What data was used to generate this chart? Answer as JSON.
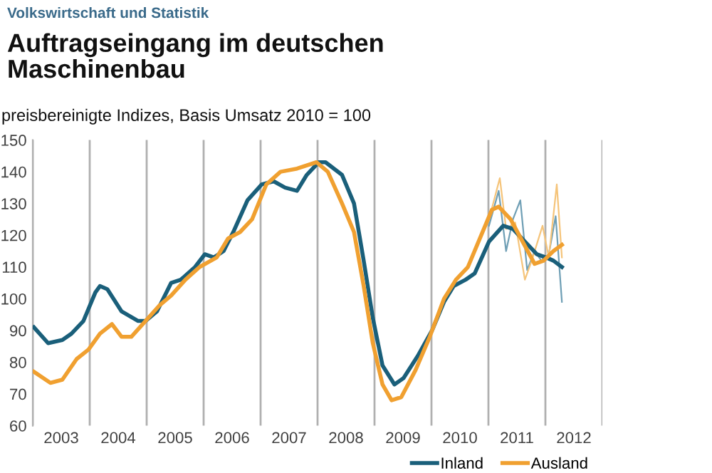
{
  "chart_data": {
    "type": "line",
    "title": "Auftragseingang im deutschen\nMaschinenbau",
    "subtitle": "preisbereinigte Indizes, Basis Umsatz 2010 = 100",
    "annotations": [
      "Volkswirtschaft und Statistik"
    ],
    "xlim": [
      2003,
      2013
    ],
    "ylim": [
      60,
      150
    ],
    "xticks": [
      {
        "value": 2003,
        "label": null
      },
      {
        "value": 2003.5,
        "label": "2003"
      },
      {
        "value": 2004,
        "label": null
      },
      {
        "value": 2004.5,
        "label": "2004"
      },
      {
        "value": 2005,
        "label": null
      },
      {
        "value": 2005.5,
        "label": "2005"
      },
      {
        "value": 2006,
        "label": null
      },
      {
        "value": 2006.5,
        "label": "2006"
      },
      {
        "value": 2007,
        "label": null
      },
      {
        "value": 2007.5,
        "label": "2007"
      },
      {
        "value": 2008,
        "label": null
      },
      {
        "value": 2008.5,
        "label": "2008"
      },
      {
        "value": 2009,
        "label": null
      },
      {
        "value": 2009.5,
        "label": "2009"
      },
      {
        "value": 2010,
        "label": null
      },
      {
        "value": 2010.5,
        "label": "2010"
      },
      {
        "value": 2011,
        "label": null
      },
      {
        "value": 2011.5,
        "label": "2011"
      },
      {
        "value": 2012,
        "label": null
      },
      {
        "value": 2012.5,
        "label": "2012"
      },
      {
        "value": 2013,
        "label": null
      }
    ],
    "yticks": [
      60,
      70,
      80,
      90,
      100,
      110,
      120,
      130,
      140,
      150
    ],
    "grid": "x",
    "legend": "bottom right",
    "marker": "none",
    "line_style": "solid",
    "series": [
      {
        "color": "#6f9fb5",
        "x": [
          2011.01,
          2011.18,
          2011.31,
          2011.43,
          2011.56,
          2011.68,
          2011.81,
          2011.93,
          2012.06,
          2012.18,
          2012.29
        ],
        "values": [
          123,
          134,
          115,
          125,
          131,
          109,
          115,
          112,
          114,
          126,
          99
        ]
      },
      {
        "color": "#f5c47a",
        "x": [
          2011.01,
          2011.2,
          2011.31,
          2011.47,
          2011.64,
          2011.76,
          2011.95,
          2012.06,
          2012.2,
          2012.29
        ],
        "values": [
          125,
          138,
          122,
          124,
          106,
          112,
          123,
          113,
          136,
          113
        ]
      },
      {
        "name": "Inland",
        "color": "#1a5f7a",
        "x": [
          2003.02,
          2003.27,
          2003.52,
          2003.68,
          2003.89,
          2004.1,
          2004.18,
          2004.31,
          2004.56,
          2004.85,
          2004.98,
          2005.18,
          2005.43,
          2005.6,
          2005.85,
          2006.02,
          2006.18,
          2006.35,
          2006.52,
          2006.77,
          2007.02,
          2007.23,
          2007.43,
          2007.64,
          2007.81,
          2008.02,
          2008.14,
          2008.43,
          2008.64,
          2008.81,
          2008.97,
          2009.14,
          2009.35,
          2009.51,
          2009.76,
          2010.01,
          2010.22,
          2010.39,
          2010.6,
          2010.76,
          2011.01,
          2011.26,
          2011.43,
          2011.64,
          2011.85,
          2012.01,
          2012.14,
          2012.29
        ],
        "values": [
          91,
          86,
          87,
          89,
          93,
          102,
          104,
          103,
          96,
          93,
          93,
          96,
          105,
          106,
          110,
          114,
          113,
          115,
          121,
          131,
          136,
          137,
          135,
          134,
          139,
          143,
          143,
          139,
          130,
          112,
          94,
          79,
          73,
          75,
          82,
          90,
          99,
          104,
          106,
          108,
          118,
          123,
          122,
          118,
          114,
          113,
          112,
          110
        ]
      },
      {
        "name": "Ausland",
        "color": "#f0a030",
        "x": [
          2003.02,
          2003.31,
          2003.52,
          2003.77,
          2003.98,
          2004.18,
          2004.39,
          2004.56,
          2004.73,
          2004.98,
          2005.23,
          2005.43,
          2005.68,
          2005.93,
          2006.23,
          2006.43,
          2006.64,
          2006.85,
          2007.1,
          2007.35,
          2007.64,
          2007.98,
          2008.18,
          2008.43,
          2008.64,
          2008.81,
          2008.97,
          2009.14,
          2009.3,
          2009.47,
          2009.72,
          2009.97,
          2010.22,
          2010.43,
          2010.64,
          2010.85,
          2011.06,
          2011.18,
          2011.39,
          2011.6,
          2011.81,
          2011.97,
          2012.14,
          2012.29
        ],
        "values": [
          77,
          73.5,
          74.5,
          81,
          84,
          89,
          92,
          88,
          88,
          93,
          98,
          101,
          106,
          110,
          113,
          119,
          121,
          125,
          136,
          140,
          141,
          143,
          140,
          130,
          121,
          104,
          86,
          73,
          68,
          69,
          77.5,
          88,
          100,
          106,
          110,
          119,
          128,
          129,
          125,
          118,
          111,
          112,
          115,
          117
        ]
      }
    ]
  }
}
